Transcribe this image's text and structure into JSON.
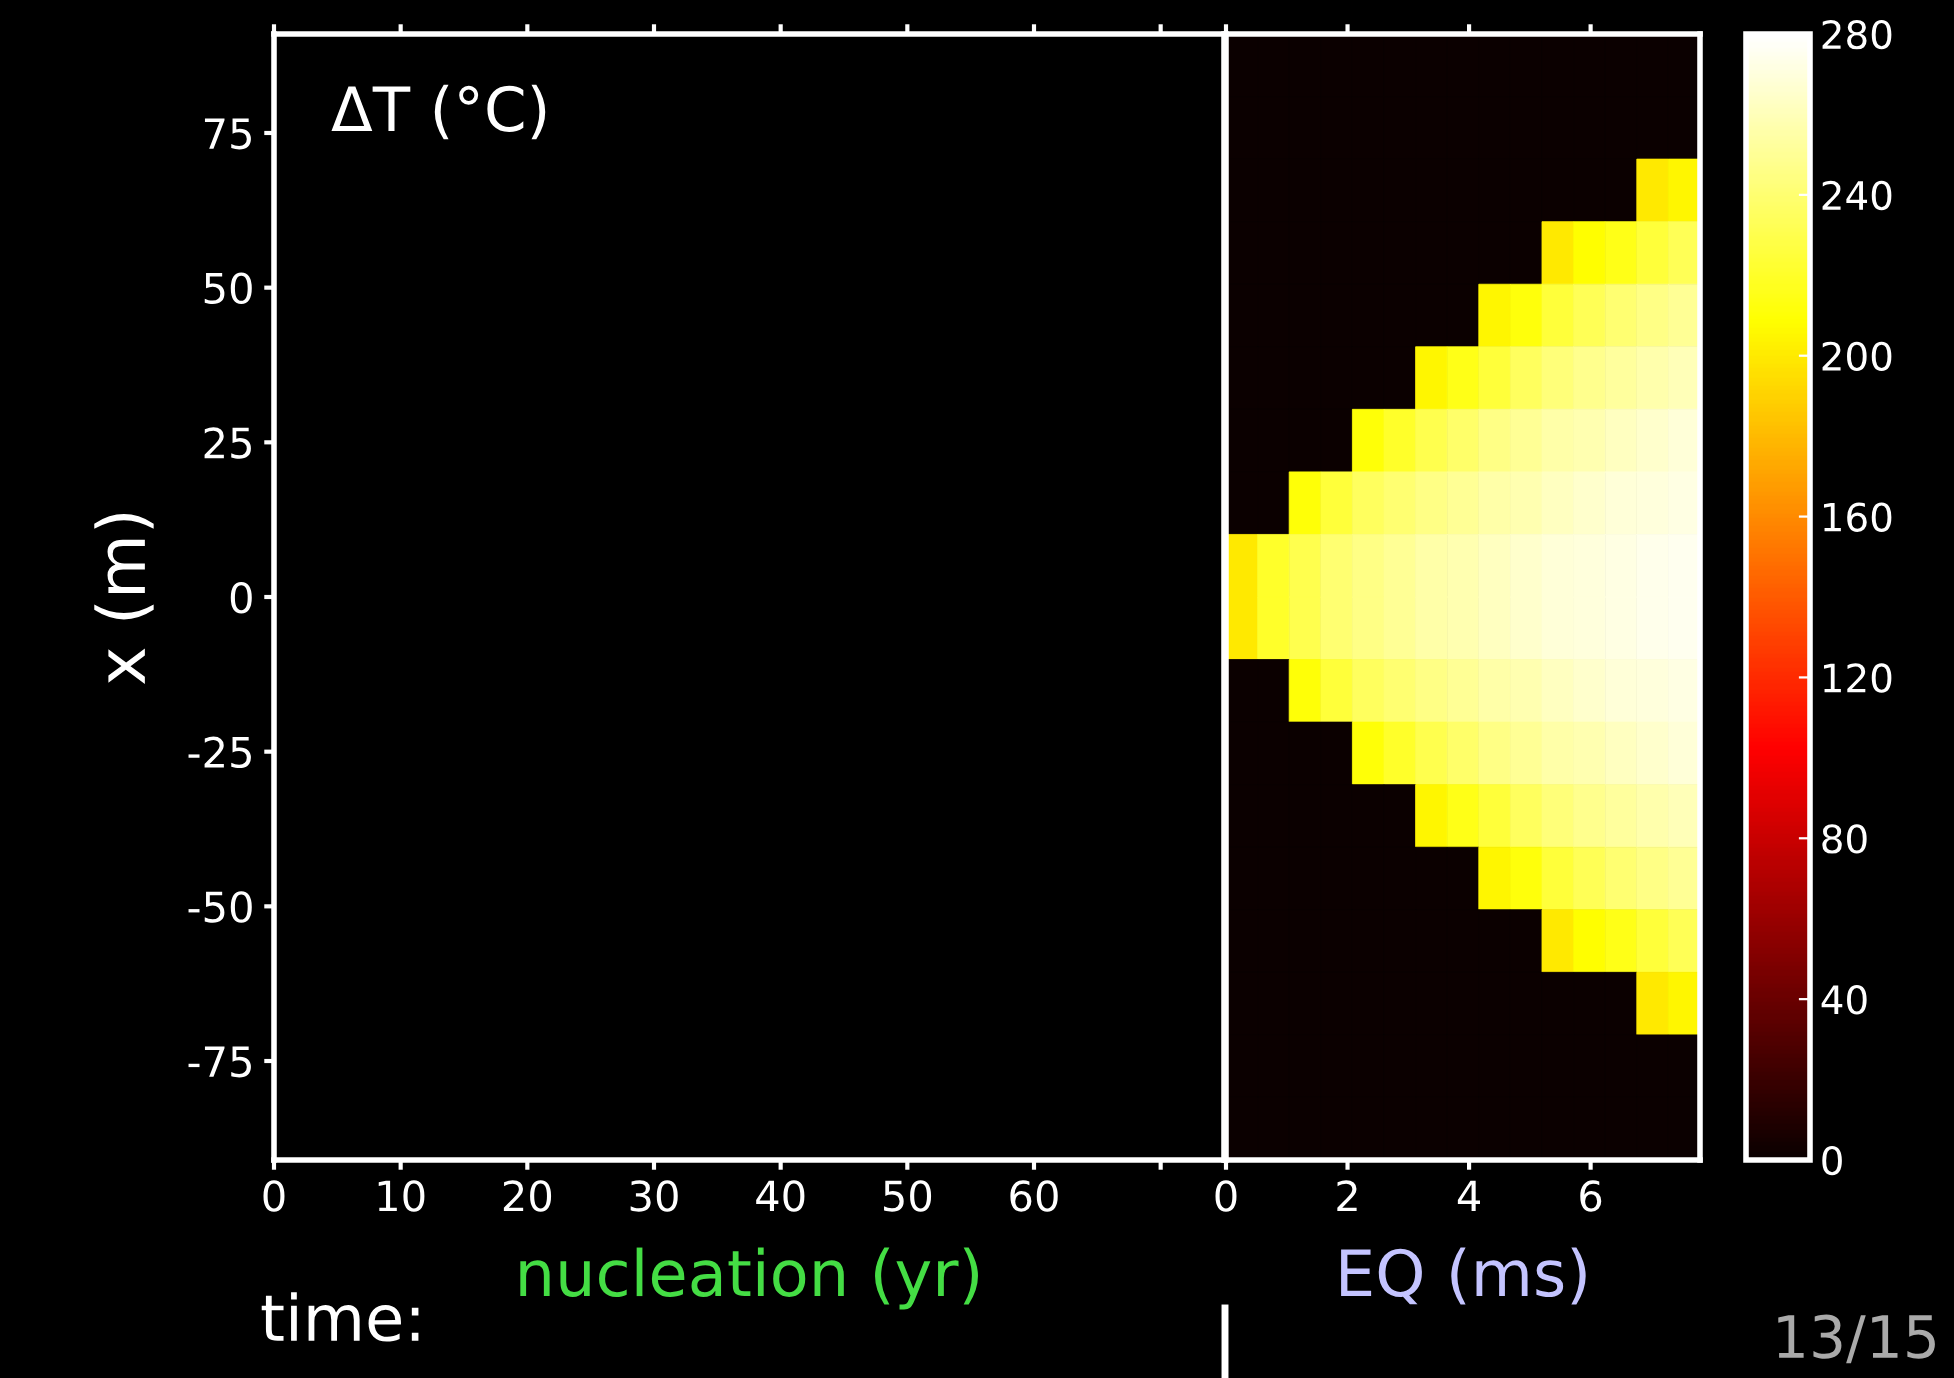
{
  "chart_data": [
    {
      "type": "heatmap",
      "title": "ΔT (°C)",
      "xlabel": "nucleation (yr)",
      "ylabel": "x (m)",
      "annotations": [
        "time:"
      ],
      "xlim": [
        0,
        75
      ],
      "xticks": [
        0,
        10,
        20,
        30,
        40,
        50,
        60,
        {
          "value": 70,
          "label": null
        }
      ],
      "ylim": [
        -91,
        91
      ],
      "yticks": [
        -75,
        -50,
        -25,
        0,
        25,
        50,
        75
      ],
      "grid": false
    },
    {
      "type": "heatmap",
      "xlabel": "EQ (ms)",
      "annotations": [
        "13/15"
      ],
      "tick_labels": "x",
      "xlim": [
        0,
        7.8
      ],
      "xticks": [
        0,
        2,
        4,
        6
      ],
      "ylim": [
        -91,
        91
      ],
      "yticks": [
        -75,
        -50,
        -25,
        0,
        25,
        50,
        75
      ],
      "clim": [
        0,
        280
      ],
      "cticks": [
        0,
        40,
        80,
        120,
        160,
        200,
        240,
        280
      ],
      "cells": [
        [
          0,
          0,
          0,
          0,
          0,
          0,
          0,
          0,
          0,
          0,
          0,
          0,
          0,
          0,
          0
        ],
        [
          0,
          0,
          0,
          0,
          0,
          0,
          0,
          0,
          0,
          0,
          0,
          0,
          0,
          0,
          0
        ],
        [
          0,
          0,
          0,
          0,
          0,
          0,
          0,
          0,
          0,
          0,
          0,
          0,
          0,
          200,
          205
        ],
        [
          0,
          0,
          0,
          0,
          0,
          0,
          0,
          0,
          0,
          0,
          200,
          208,
          215,
          225,
          232
        ],
        [
          0,
          0,
          0,
          0,
          0,
          0,
          0,
          0,
          205,
          212,
          225,
          232,
          240,
          245,
          250
        ],
        [
          0,
          0,
          0,
          0,
          0,
          0,
          205,
          215,
          225,
          235,
          242,
          248,
          252,
          256,
          260
        ],
        [
          0,
          0,
          0,
          0,
          210,
          220,
          230,
          238,
          245,
          250,
          255,
          258,
          262,
          265,
          268
        ],
        [
          0,
          0,
          210,
          225,
          235,
          240,
          245,
          250,
          255,
          258,
          262,
          265,
          268,
          270,
          272
        ],
        [
          200,
          220,
          230,
          240,
          245,
          250,
          255,
          258,
          262,
          265,
          268,
          270,
          272,
          274,
          275
        ],
        [
          200,
          220,
          230,
          240,
          245,
          250,
          255,
          258,
          262,
          265,
          268,
          270,
          272,
          274,
          275
        ],
        [
          0,
          0,
          210,
          225,
          235,
          240,
          245,
          250,
          255,
          258,
          262,
          265,
          268,
          270,
          272
        ],
        [
          0,
          0,
          0,
          0,
          210,
          220,
          230,
          238,
          245,
          250,
          255,
          258,
          262,
          265,
          268
        ],
        [
          0,
          0,
          0,
          0,
          0,
          0,
          205,
          215,
          225,
          235,
          242,
          248,
          252,
          256,
          260
        ],
        [
          0,
          0,
          0,
          0,
          0,
          0,
          0,
          0,
          205,
          212,
          225,
          232,
          240,
          245,
          250
        ],
        [
          0,
          0,
          0,
          0,
          0,
          0,
          0,
          0,
          0,
          0,
          200,
          208,
          215,
          225,
          232
        ],
        [
          0,
          0,
          0,
          0,
          0,
          0,
          0,
          0,
          0,
          0,
          0,
          0,
          0,
          200,
          205
        ],
        [
          0,
          0,
          0,
          0,
          0,
          0,
          0,
          0,
          0,
          0,
          0,
          0,
          0,
          0,
          0
        ],
        [
          0,
          0,
          0,
          0,
          0,
          0,
          0,
          0,
          0,
          0,
          0,
          0,
          0,
          0,
          0
        ]
      ]
    }
  ]
}
